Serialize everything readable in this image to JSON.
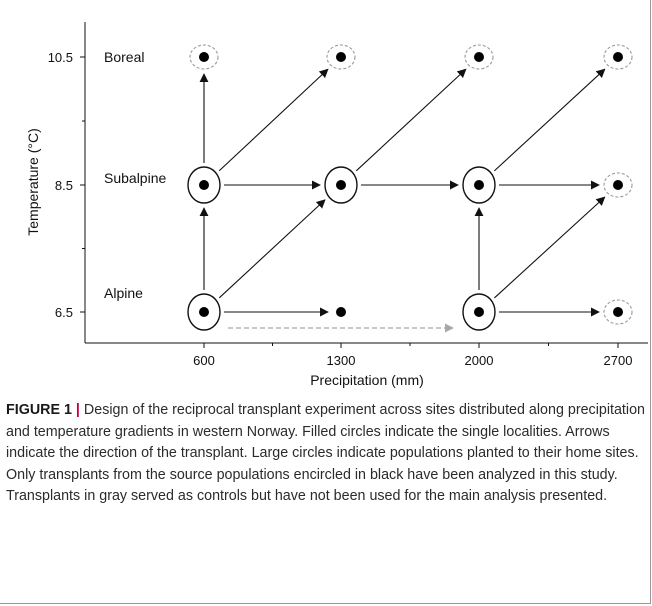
{
  "chart_data": {
    "type": "diagram",
    "xlabel": "Precipitation (mm)",
    "ylabel": "Temperature (°C)",
    "x_ticks": [
      600,
      1300,
      2000,
      2700
    ],
    "y_ticks": [
      6.5,
      8.5,
      10.5
    ],
    "site_labels": [
      {
        "text": "Boreal",
        "temperature": 10.5
      },
      {
        "text": "Subalpine",
        "temperature": 8.5
      },
      {
        "text": "Alpine",
        "temperature": 6.5
      }
    ],
    "sites": [
      {
        "precipitation": 600,
        "temperature": 10.5,
        "ring": "gray"
      },
      {
        "precipitation": 1300,
        "temperature": 10.5,
        "ring": "gray"
      },
      {
        "precipitation": 2000,
        "temperature": 10.5,
        "ring": "gray"
      },
      {
        "precipitation": 2700,
        "temperature": 10.5,
        "ring": "gray"
      },
      {
        "precipitation": 600,
        "temperature": 8.5,
        "ring": "black"
      },
      {
        "precipitation": 1300,
        "temperature": 8.5,
        "ring": "black"
      },
      {
        "precipitation": 2000,
        "temperature": 8.5,
        "ring": "black"
      },
      {
        "precipitation": 2700,
        "temperature": 8.5,
        "ring": "gray"
      },
      {
        "precipitation": 600,
        "temperature": 6.5,
        "ring": "black"
      },
      {
        "precipitation": 1300,
        "temperature": 6.5,
        "ring": "none"
      },
      {
        "precipitation": 2000,
        "temperature": 6.5,
        "ring": "black"
      },
      {
        "precipitation": 2700,
        "temperature": 6.5,
        "ring": "gray"
      }
    ],
    "transplants": [
      {
        "from": [
          600,
          8.5
        ],
        "to": [
          600,
          10.5
        ],
        "style": "black"
      },
      {
        "from": [
          600,
          8.5
        ],
        "to": [
          1300,
          10.5
        ],
        "style": "black"
      },
      {
        "from": [
          600,
          8.5
        ],
        "to": [
          1300,
          8.5
        ],
        "style": "black"
      },
      {
        "from": [
          1300,
          8.5
        ],
        "to": [
          2000,
          10.5
        ],
        "style": "black"
      },
      {
        "from": [
          1300,
          8.5
        ],
        "to": [
          2000,
          8.5
        ],
        "style": "black"
      },
      {
        "from": [
          2000,
          8.5
        ],
        "to": [
          2700,
          10.5
        ],
        "style": "black"
      },
      {
        "from": [
          2000,
          8.5
        ],
        "to": [
          2700,
          8.5
        ],
        "style": "black"
      },
      {
        "from": [
          600,
          6.5
        ],
        "to": [
          600,
          8.5
        ],
        "style": "black"
      },
      {
        "from": [
          600,
          6.5
        ],
        "to": [
          1300,
          8.5
        ],
        "style": "black"
      },
      {
        "from": [
          600,
          6.5
        ],
        "to": [
          1300,
          6.5
        ],
        "style": "black"
      },
      {
        "from": [
          2000,
          6.5
        ],
        "to": [
          2000,
          8.5
        ],
        "style": "black"
      },
      {
        "from": [
          2000,
          6.5
        ],
        "to": [
          2700,
          8.5
        ],
        "style": "black"
      },
      {
        "from": [
          2000,
          6.5
        ],
        "to": [
          2700,
          6.5
        ],
        "style": "black"
      },
      {
        "from": [
          600,
          6.5
        ],
        "to": [
          2000,
          6.5
        ],
        "style": "gray-dashed"
      }
    ],
    "colors": {
      "black": "#111111",
      "gray": "#9a9a9a"
    }
  },
  "caption": {
    "label": "FIGURE 1",
    "separator": "|",
    "text": "Design of the reciprocal transplant experiment across sites distributed along precipitation and temperature gradients in western Norway. Filled circles indicate the single localities. Arrows indicate the direction of the transplant. Large circles indicate populations planted to their home sites. Only transplants from the source populations encircled in black have been analyzed in this study. Transplants in gray served as controls but have not been used for the main analysis presented."
  }
}
